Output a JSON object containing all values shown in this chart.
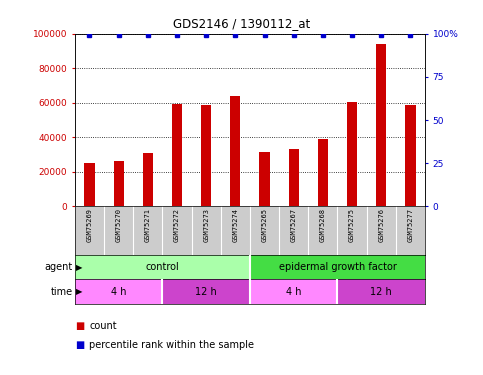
{
  "title": "GDS2146 / 1390112_at",
  "samples": [
    "GSM75269",
    "GSM75270",
    "GSM75271",
    "GSM75272",
    "GSM75273",
    "GSM75274",
    "GSM75265",
    "GSM75267",
    "GSM75268",
    "GSM75275",
    "GSM75276",
    "GSM75277"
  ],
  "counts": [
    25000,
    26000,
    31000,
    59000,
    58500,
    64000,
    31500,
    33000,
    39000,
    60500,
    94000,
    58500
  ],
  "percentile_ranks": [
    99,
    99,
    99,
    99,
    99,
    99,
    99,
    99,
    99,
    99,
    99,
    99
  ],
  "bar_color": "#cc0000",
  "dot_color": "#0000cc",
  "ylim_left": [
    0,
    100000
  ],
  "ylim_right": [
    0,
    100
  ],
  "ytick_labels_left": [
    "0",
    "20000",
    "40000",
    "60000",
    "80000",
    "100000"
  ],
  "ytick_labels_right": [
    "0",
    "25",
    "50",
    "75",
    "100%"
  ],
  "agent_labels": [
    {
      "label": "control",
      "start": 0,
      "end": 6,
      "color": "#aaffaa"
    },
    {
      "label": "epidermal growth factor",
      "start": 6,
      "end": 12,
      "color": "#44dd44"
    }
  ],
  "time_labels": [
    {
      "label": "4 h",
      "start": 0,
      "end": 3,
      "color": "#ff88ff"
    },
    {
      "label": "12 h",
      "start": 3,
      "end": 6,
      "color": "#cc44cc"
    },
    {
      "label": "4 h",
      "start": 6,
      "end": 9,
      "color": "#ff88ff"
    },
    {
      "label": "12 h",
      "start": 9,
      "end": 12,
      "color": "#cc44cc"
    }
  ],
  "legend_count_color": "#cc0000",
  "legend_pct_color": "#0000cc",
  "background_color": "#ffffff",
  "label_row_bg": "#cccccc"
}
